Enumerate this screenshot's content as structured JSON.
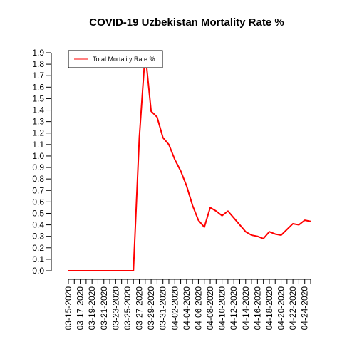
{
  "chart_data": {
    "type": "line",
    "title": "COVID-19 Uzbekistan Mortality Rate %",
    "xlabel": "",
    "ylabel": "",
    "ylim": [
      0,
      1.9
    ],
    "yticks": [
      "0.0",
      "0.1",
      "0.2",
      "0.3",
      "0.4",
      "0.5",
      "0.6",
      "0.7",
      "0.8",
      "0.9",
      "1.0",
      "1.1",
      "1.2",
      "1.3",
      "1.4",
      "1.5",
      "1.6",
      "1.7",
      "1.8",
      "1.9"
    ],
    "xtick_labels": [
      "03-15-2020",
      "03-17-2020",
      "03-19-2020",
      "03-21-2020",
      "03-23-2020",
      "03-25-2020",
      "03-27-2020",
      "03-29-2020",
      "03-31-2020",
      "04-02-2020",
      "04-04-2020",
      "04-06-2020",
      "04-08-2020",
      "04-10-2020",
      "04-12-2020",
      "04-14-2020",
      "04-16-2020",
      "04-18-2020",
      "04-20-2020",
      "04-22-2020",
      "04-24-2020"
    ],
    "legend": {
      "position": "top-left",
      "entries": [
        "Total Mortality Rate %"
      ]
    },
    "grid": false,
    "series": [
      {
        "name": "Total Mortality Rate %",
        "color": "#ff0000",
        "x": [
          "03-15-2020",
          "03-16-2020",
          "03-17-2020",
          "03-18-2020",
          "03-19-2020",
          "03-20-2020",
          "03-21-2020",
          "03-22-2020",
          "03-23-2020",
          "03-24-2020",
          "03-25-2020",
          "03-26-2020",
          "03-27-2020",
          "03-28-2020",
          "03-29-2020",
          "03-30-2020",
          "03-31-2020",
          "04-01-2020",
          "04-02-2020",
          "04-03-2020",
          "04-04-2020",
          "04-05-2020",
          "04-06-2020",
          "04-07-2020",
          "04-08-2020",
          "04-09-2020",
          "04-10-2020",
          "04-11-2020",
          "04-12-2020",
          "04-13-2020",
          "04-14-2020",
          "04-15-2020",
          "04-16-2020",
          "04-17-2020",
          "04-18-2020",
          "04-19-2020",
          "04-20-2020",
          "04-21-2020",
          "04-22-2020",
          "04-23-2020",
          "04-24-2020",
          "04-25-2020"
        ],
        "values": [
          0,
          0,
          0,
          0,
          0,
          0,
          0,
          0,
          0,
          0,
          0,
          0,
          1.16,
          1.9,
          1.39,
          1.34,
          1.16,
          1.1,
          0.97,
          0.87,
          0.74,
          0.57,
          0.44,
          0.38,
          0.55,
          0.52,
          0.48,
          0.52,
          0.46,
          0.4,
          0.34,
          0.31,
          0.3,
          0.28,
          0.34,
          0.32,
          0.31,
          0.36,
          0.41,
          0.4,
          0.44,
          0.43
        ]
      }
    ]
  }
}
